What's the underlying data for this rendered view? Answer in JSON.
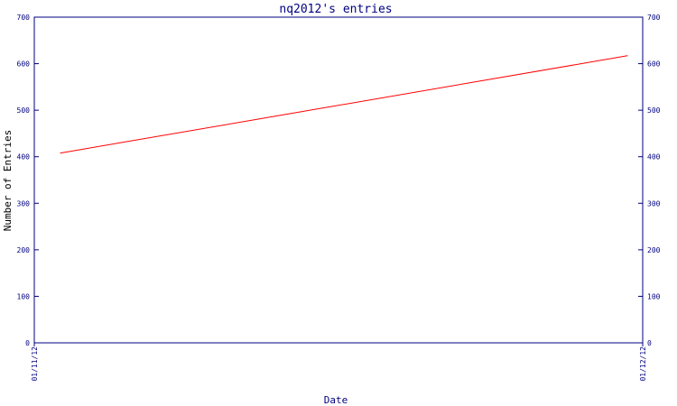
{
  "chart_data": {
    "type": "line",
    "title": "nq2012's entries",
    "xlabel": "Date",
    "ylabel": "Number of Entries",
    "x_ticks": [
      "01/11/12",
      "01/12/12"
    ],
    "y_ticks": [
      "0",
      "100",
      "200",
      "300",
      "400",
      "500",
      "600",
      "700"
    ],
    "ylim": [
      0,
      700
    ],
    "grid": false,
    "series": [
      {
        "x": [
          "01/11/12",
          "01/12/12"
        ],
        "values": [
          408,
          617
        ],
        "color": "#ff0000"
      }
    ],
    "colors": {
      "axis": "#000080",
      "line": "#ff0000",
      "background": "#ffffff"
    }
  }
}
